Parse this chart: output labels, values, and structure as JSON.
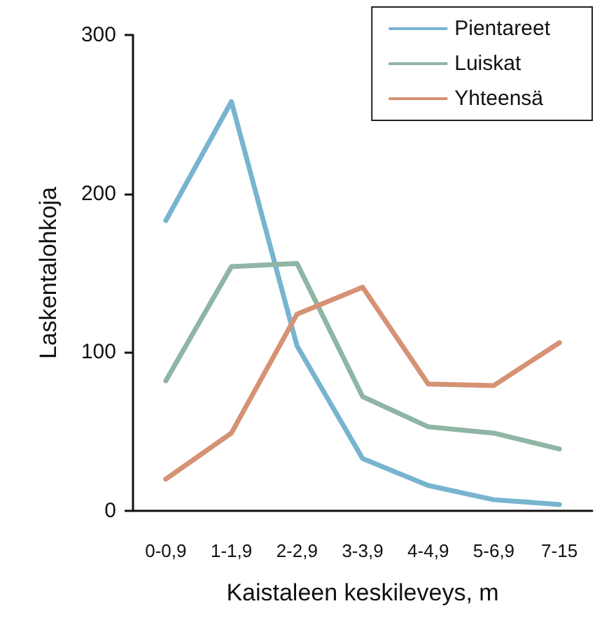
{
  "chart_data": {
    "type": "line",
    "xlabel": "Kaistaleen keskileveys, m",
    "ylabel": "Laskentalohkoja",
    "categories": [
      "0-0,9",
      "1-1,9",
      "2-2,9",
      "3-3,9",
      "4-4,9",
      "5-6,9",
      "7-15"
    ],
    "series": [
      {
        "name": "Pientareet",
        "color": "#78b4d0",
        "values": [
          183,
          258,
          104,
          33,
          16,
          7,
          4
        ]
      },
      {
        "name": "Luiskat",
        "color": "#8fb5a4",
        "values": [
          82,
          154,
          156,
          72,
          53,
          49,
          39
        ]
      },
      {
        "name": "Yhteensä",
        "color": "#d59274",
        "values": [
          20,
          49,
          124,
          141,
          80,
          79,
          106
        ]
      }
    ],
    "ylim": [
      0,
      300
    ],
    "yticks": [
      0,
      100,
      200,
      300
    ],
    "grid": false,
    "legend": "top right",
    "marker": "none",
    "line_style": "solid"
  }
}
